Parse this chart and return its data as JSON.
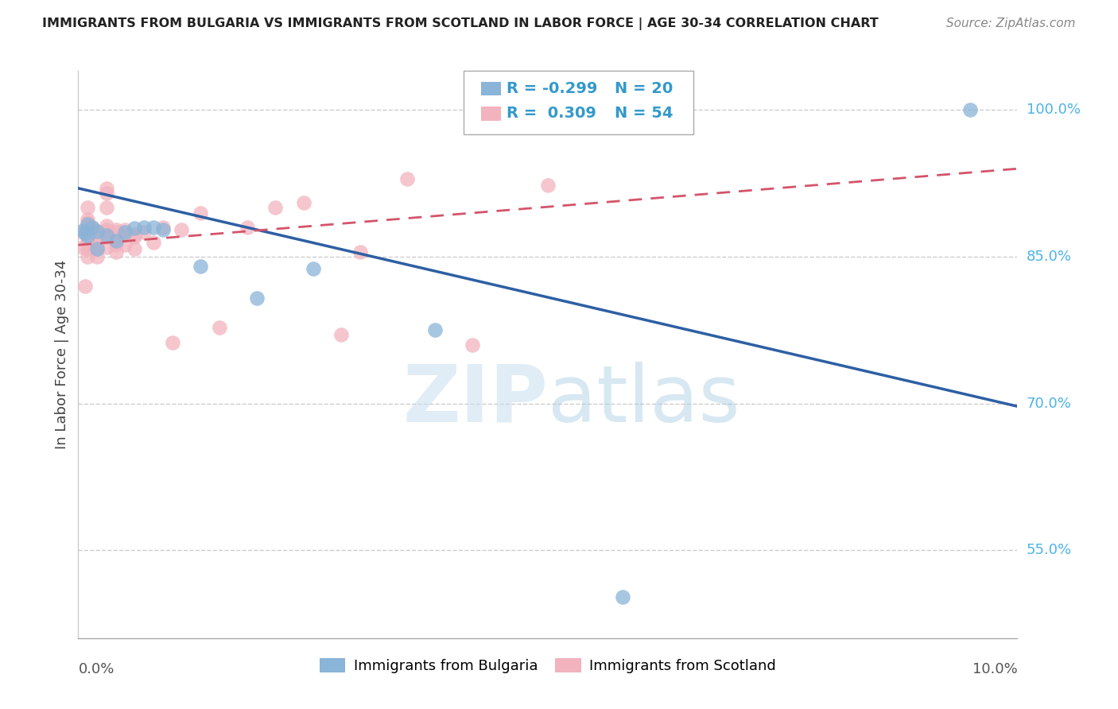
{
  "title": "IMMIGRANTS FROM BULGARIA VS IMMIGRANTS FROM SCOTLAND IN LABOR FORCE | AGE 30-34 CORRELATION CHART",
  "source": "Source: ZipAtlas.com",
  "ylabel": "In Labor Force | Age 30-34",
  "xmin": 0.0,
  "xmax": 0.1,
  "ymin": 0.46,
  "ymax": 1.04,
  "yticks": [
    0.55,
    0.7,
    0.85,
    1.0
  ],
  "ytick_labels": [
    "55.0%",
    "70.0%",
    "85.0%",
    "100.0%"
  ],
  "grid_color": "#cccccc",
  "background_color": "#ffffff",
  "watermark_zip": "ZIP",
  "watermark_atlas": "atlas",
  "blue_color": "#8ab4d8",
  "pink_color": "#f2b3be",
  "blue_line_color": "#2e5fa3",
  "pink_line_color": "#d4546a",
  "legend_R_blue": "-0.299",
  "legend_N_blue": "20",
  "legend_R_pink": "0.309",
  "legend_N_pink": "54",
  "blue_x": [
    0.0005,
    0.0007,
    0.001,
    0.001,
    0.0015,
    0.002,
    0.002,
    0.003,
    0.004,
    0.005,
    0.006,
    0.007,
    0.008,
    0.009,
    0.013,
    0.019,
    0.025,
    0.038,
    0.058,
    0.095
  ],
  "blue_y": [
    0.877,
    0.874,
    0.883,
    0.871,
    0.88,
    0.876,
    0.858,
    0.872,
    0.866,
    0.875,
    0.879,
    0.88,
    0.88,
    0.878,
    0.84,
    0.808,
    0.838,
    0.775,
    0.502,
    1.0
  ],
  "pink_x": [
    0.0004,
    0.0005,
    0.0007,
    0.001,
    0.001,
    0.001,
    0.001,
    0.001,
    0.001,
    0.001,
    0.001,
    0.001,
    0.001,
    0.001,
    0.0015,
    0.002,
    0.002,
    0.002,
    0.002,
    0.002,
    0.003,
    0.003,
    0.003,
    0.003,
    0.003,
    0.003,
    0.003,
    0.003,
    0.004,
    0.004,
    0.004,
    0.004,
    0.004,
    0.005,
    0.005,
    0.005,
    0.006,
    0.006,
    0.006,
    0.007,
    0.008,
    0.009,
    0.01,
    0.011,
    0.013,
    0.015,
    0.018,
    0.021,
    0.024,
    0.028,
    0.03,
    0.035,
    0.042,
    0.05
  ],
  "pink_y": [
    0.875,
    0.86,
    0.82,
    0.9,
    0.888,
    0.885,
    0.882,
    0.88,
    0.877,
    0.875,
    0.87,
    0.865,
    0.858,
    0.85,
    0.88,
    0.875,
    0.87,
    0.862,
    0.858,
    0.85,
    0.92,
    0.915,
    0.9,
    0.882,
    0.878,
    0.875,
    0.87,
    0.86,
    0.878,
    0.875,
    0.868,
    0.862,
    0.855,
    0.878,
    0.872,
    0.862,
    0.873,
    0.87,
    0.858,
    0.875,
    0.865,
    0.88,
    0.762,
    0.878,
    0.895,
    0.778,
    0.88,
    0.9,
    0.905,
    0.77,
    0.855,
    0.93,
    0.76,
    0.923
  ],
  "blue_line_y0": 0.92,
  "blue_line_y1": 0.697,
  "pink_line_y0": 0.862,
  "pink_line_y1": 0.94
}
